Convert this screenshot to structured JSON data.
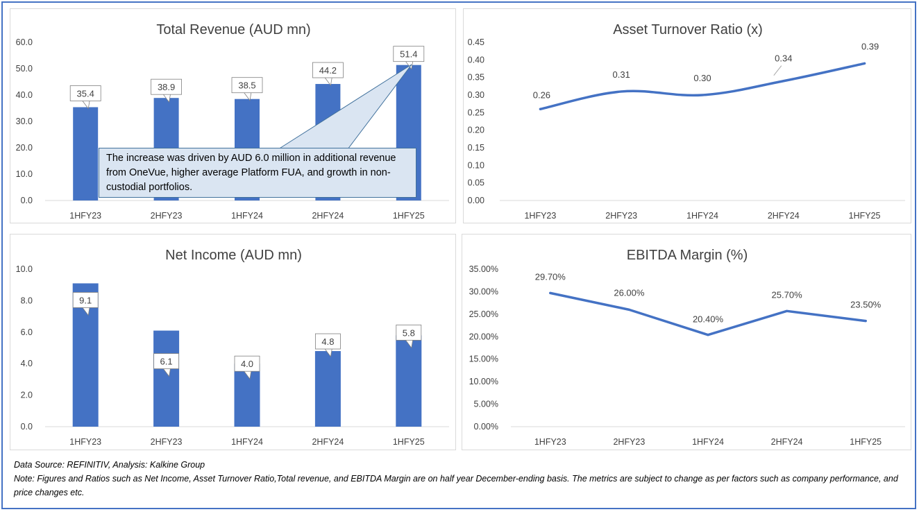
{
  "charts": [
    {
      "type": "bar",
      "title": "Total Revenue (AUD mn)",
      "categories": [
        "1HFY23",
        "2HFY23",
        "1HFY24",
        "2HFY24",
        "1HFY25"
      ],
      "values": [
        35.4,
        38.9,
        38.5,
        44.2,
        51.4
      ],
      "value_labels": [
        "35.4",
        "38.9",
        "38.5",
        "44.2",
        "51.4"
      ],
      "ylim": [
        0,
        60
      ],
      "y_ticks": [
        "0.0",
        "10.0",
        "20.0",
        "30.0",
        "40.0",
        "50.0",
        "60.0"
      ],
      "annotation": "The increase was driven by AUD 6.0 million in additional revenue from OneVue, higher average Platform FUA, and growth in non-custodial portfolios.",
      "color": "#4472c4"
    },
    {
      "type": "line",
      "title": "Asset Turnover Ratio (x)",
      "categories": [
        "1HFY23",
        "2HFY23",
        "1HFY24",
        "2HFY24",
        "1HFY25"
      ],
      "values": [
        0.26,
        0.31,
        0.3,
        0.34,
        0.39
      ],
      "value_labels": [
        "0.26",
        "0.31",
        "0.30",
        "0.34",
        "0.39"
      ],
      "ylim": [
        0,
        0.45
      ],
      "y_ticks": [
        "0.00",
        "0.05",
        "0.10",
        "0.15",
        "0.20",
        "0.25",
        "0.30",
        "0.35",
        "0.40",
        "0.45"
      ],
      "color": "#4472c4"
    },
    {
      "type": "bar",
      "title": "Net Income (AUD mn)",
      "categories": [
        "1HFY23",
        "2HFY23",
        "1HFY24",
        "2HFY24",
        "1HFY25"
      ],
      "values": [
        9.1,
        6.1,
        4.0,
        4.8,
        5.8
      ],
      "value_labels": [
        "9.1",
        "6.1",
        "4.0",
        "4.8",
        "5.8"
      ],
      "ylim": [
        0,
        10
      ],
      "y_ticks": [
        "0.0",
        "2.0",
        "4.0",
        "6.0",
        "8.0",
        "10.0"
      ],
      "color": "#4472c4"
    },
    {
      "type": "line",
      "title": "EBITDA Margin (%)",
      "categories": [
        "1HFY23",
        "2HFY23",
        "1HFY24",
        "2HFY24",
        "1HFY25"
      ],
      "values": [
        29.7,
        26.0,
        20.4,
        25.7,
        23.5
      ],
      "value_labels": [
        "29.70%",
        "26.00%",
        "20.40%",
        "25.70%",
        "23.50%"
      ],
      "ylim": [
        0,
        35
      ],
      "y_ticks": [
        "0.00%",
        "5.00%",
        "10.00%",
        "15.00%",
        "20.00%",
        "25.00%",
        "30.00%",
        "35.00%"
      ],
      "color": "#4472c4"
    }
  ],
  "footer": {
    "source": "Data Source: REFINITIV, Analysis: Kalkine Group",
    "note": "Note: Figures and Ratios such as Net Income, Asset Turnover Ratio,Total revenue, and EBITDA Margin are on half year December-ending basis. The metrics are subject to change as per factors such as company performance, and price changes etc."
  }
}
